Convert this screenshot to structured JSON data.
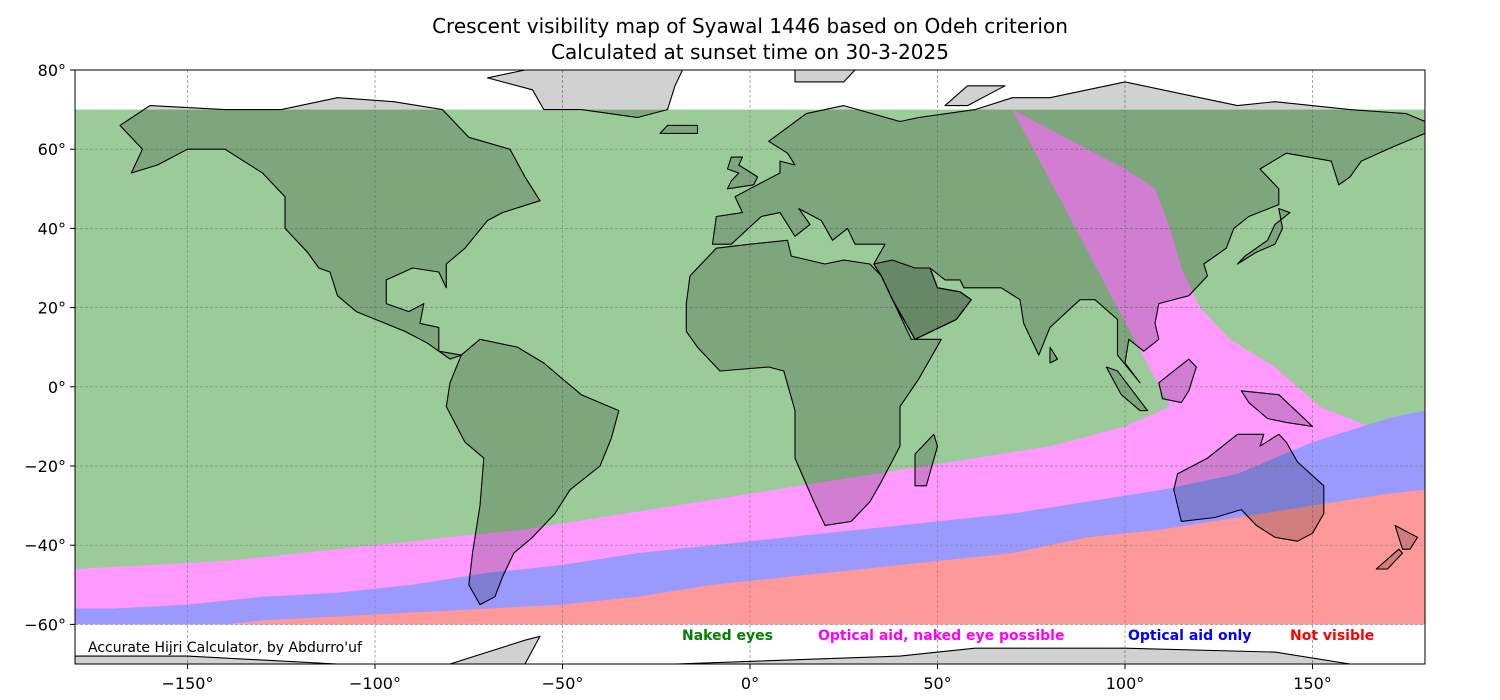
{
  "title_line1": "Crescent visibility map of Syawal 1446 based on Odeh criterion",
  "title_line2": "Calculated at sunset time on 30-3-2025",
  "credit": "Accurate Hijri Calculator, by Abdurro'uf",
  "legend": [
    {
      "label": "Naked eyes",
      "color": "#008000"
    },
    {
      "label": "Optical aid, naked eye possible",
      "color": "#ff00ff"
    },
    {
      "label": "Optical aid only",
      "color": "#0000ff"
    },
    {
      "label": "Not visible",
      "color": "#ff0000"
    }
  ],
  "zone_colors": {
    "naked_eyes": "#9acb98",
    "optical_naked_possible": "#ff99ff",
    "optical_only": "#9999ff",
    "not_visible": "#ff9999",
    "land_overlay": "#000000",
    "land_outside": "#d3d3d3"
  },
  "x_ticks": [
    {
      "value": -150,
      "label": "−150°"
    },
    {
      "value": -100,
      "label": "−100°"
    },
    {
      "value": -50,
      "label": "−50°"
    },
    {
      "value": 0,
      "label": "0°"
    },
    {
      "value": 50,
      "label": "50°"
    },
    {
      "value": 100,
      "label": "100°"
    },
    {
      "value": 150,
      "label": "150°"
    }
  ],
  "y_ticks": [
    {
      "value": 80,
      "label": "80°"
    },
    {
      "value": 60,
      "label": "60°"
    },
    {
      "value": 40,
      "label": "40°"
    },
    {
      "value": 20,
      "label": "20°"
    },
    {
      "value": 0,
      "label": "0°"
    },
    {
      "value": -20,
      "label": "−20°"
    },
    {
      "value": -40,
      "label": "−40°"
    },
    {
      "value": -60,
      "label": "−60°"
    }
  ],
  "map_extent": {
    "lon": [
      -180,
      180
    ],
    "lat": [
      -70,
      80
    ],
    "computed_lat": [
      -60,
      70
    ]
  },
  "zone_boundaries": {
    "green_pink": [
      [
        180,
        -10
      ],
      [
        165,
        -10
      ],
      [
        152,
        -5
      ],
      [
        140,
        5
      ],
      [
        128,
        12
      ],
      [
        120,
        20
      ],
      [
        115,
        30
      ],
      [
        112,
        40
      ],
      [
        108,
        50
      ],
      [
        100,
        55
      ],
      [
        90,
        60
      ],
      [
        80,
        65
      ],
      [
        70,
        70
      ]
    ],
    "green_pink_south": [
      [
        112,
        -5
      ],
      [
        100,
        -10
      ],
      [
        80,
        -15
      ],
      [
        60,
        -18
      ],
      [
        40,
        -21
      ],
      [
        20,
        -24
      ],
      [
        0,
        -27
      ],
      [
        -20,
        -30
      ],
      [
        -40,
        -33
      ],
      [
        -60,
        -36
      ],
      [
        -80,
        -38
      ],
      [
        -100,
        -40
      ],
      [
        -120,
        -42
      ],
      [
        -140,
        -44
      ],
      [
        -160,
        -45
      ],
      [
        -180,
        -46
      ]
    ],
    "pink_blue": [
      [
        180,
        -6
      ],
      [
        170,
        -8
      ],
      [
        150,
        -14
      ],
      [
        130,
        -22
      ],
      [
        110,
        -26
      ],
      [
        90,
        -29
      ],
      [
        70,
        -32
      ],
      [
        50,
        -34
      ],
      [
        30,
        -36
      ],
      [
        10,
        -38
      ],
      [
        -10,
        -40
      ],
      [
        -30,
        -42
      ],
      [
        -50,
        -45
      ],
      [
        -70,
        -47
      ],
      [
        -90,
        -50
      ],
      [
        -110,
        -52
      ],
      [
        -130,
        -53
      ],
      [
        -150,
        -55
      ],
      [
        -170,
        -56
      ],
      [
        -180,
        -56
      ]
    ],
    "blue_red": [
      [
        180,
        -26
      ],
      [
        170,
        -27
      ],
      [
        150,
        -30
      ],
      [
        130,
        -33
      ],
      [
        110,
        -36
      ],
      [
        90,
        -38
      ],
      [
        70,
        -42
      ],
      [
        50,
        -44
      ],
      [
        30,
        -46
      ],
      [
        10,
        -48
      ],
      [
        -10,
        -50
      ],
      [
        -30,
        -53
      ],
      [
        -50,
        -55
      ],
      [
        -70,
        -56
      ],
      [
        -90,
        -57
      ],
      [
        -110,
        -58
      ],
      [
        -130,
        -59
      ],
      [
        -140,
        -60
      ]
    ]
  }
}
